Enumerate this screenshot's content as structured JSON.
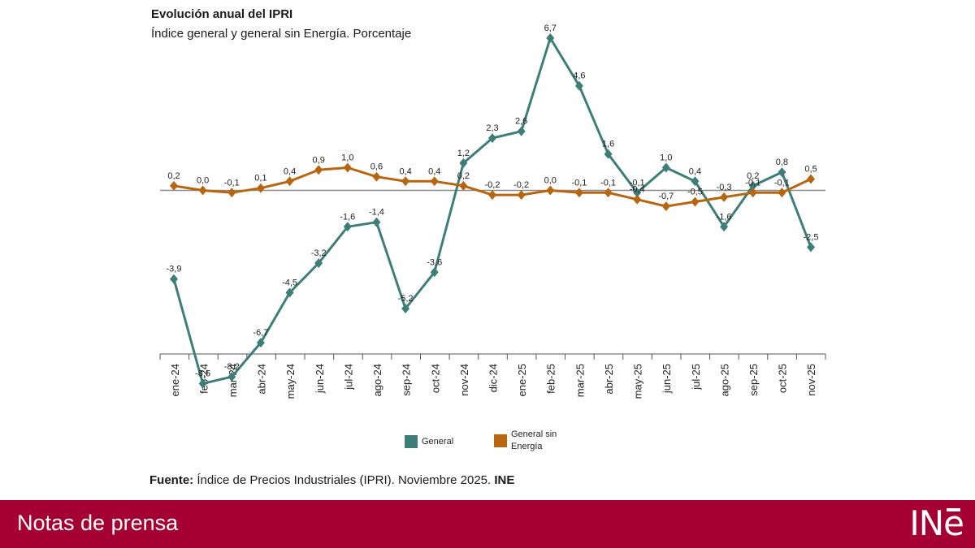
{
  "header": {
    "title": "Evolución anual del IPRI",
    "subtitle": "Índice general y general sin Energía. Porcentaje"
  },
  "chart_data": {
    "type": "line",
    "title": "Evolución anual del IPRI",
    "subtitle": "Índice general y general sin Energía. Porcentaje",
    "xlabel": "",
    "ylabel": "",
    "ylim": [
      -9.8,
      7.8
    ],
    "grid": false,
    "legend_position": "bottom",
    "categories": [
      "ene-24",
      "feb-24",
      "mar-24",
      "abr-24",
      "may-24",
      "jun-24",
      "jul-24",
      "ago-24",
      "sep-24",
      "oct-24",
      "nov-24",
      "dic-24",
      "ene-25",
      "feb-25",
      "mar-25",
      "abr-25",
      "may-25",
      "jun-25",
      "jul-25",
      "ago-25",
      "sep-25",
      "oct-25",
      "nov-25"
    ],
    "series": [
      {
        "name": "General",
        "color": "#3d7f78",
        "values": [
          -3.9,
          -8.5,
          -8.2,
          -6.7,
          -4.5,
          -3.2,
          -1.6,
          -1.4,
          -5.2,
          -3.6,
          1.2,
          2.3,
          2.6,
          6.7,
          4.6,
          1.6,
          -0.1,
          1.0,
          0.4,
          -1.6,
          0.2,
          0.8,
          -2.5
        ],
        "labels": [
          "-3,9",
          "-8,5",
          "-8,2",
          "-6,7",
          "-4,5",
          "-3,2",
          "-1,6",
          "-1,4",
          "-5,2",
          "-3,6",
          "1,2",
          "2,3",
          "2,6",
          "6,7",
          "4,6",
          "1,6",
          "-0,1",
          "1,0",
          "0,4",
          "-1,6",
          "0,2",
          "0,8",
          "-2,5"
        ]
      },
      {
        "name": "General sin Energía",
        "color": "#b8650f",
        "values": [
          0.2,
          0.0,
          -0.1,
          0.1,
          0.4,
          0.9,
          1.0,
          0.6,
          0.4,
          0.4,
          0.2,
          -0.2,
          -0.2,
          0.0,
          -0.1,
          -0.1,
          -0.4,
          -0.7,
          -0.5,
          -0.3,
          -0.1,
          -0.1,
          0.5
        ],
        "labels": [
          "0,2",
          "0,0",
          "-0,1",
          "0,1",
          "0,4",
          "0,9",
          "1,0",
          "0,6",
          "0,4",
          "0,4",
          "0,2",
          "-0,2",
          "-0,2",
          "0,0",
          "-0,1",
          "-0,1",
          "-0,4",
          "-0,7",
          "-0,5",
          "-0,3",
          "-0,1",
          "-0,1",
          "0,5"
        ]
      }
    ]
  },
  "legend": {
    "general": "General",
    "sin_energia_line1": "General sin",
    "sin_energia_line2": "Energía"
  },
  "source": {
    "prefix": "Fuente:",
    "text": " Índice de Precios Industriales (IPRI). Noviembre 2025. ",
    "org": "INE"
  },
  "footer": {
    "label": "Notas de prensa",
    "logo_prefix": "IN",
    "logo_suffix": "e"
  }
}
